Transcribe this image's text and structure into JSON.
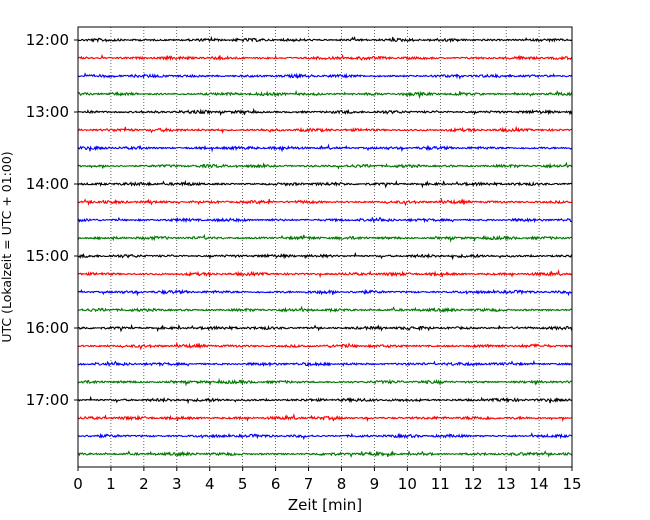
{
  "chart_data": {
    "type": "line",
    "title": "",
    "xlabel": "Zeit  [min]",
    "ylabel": "UTC (Lokalzeit = UTC + 01:00)",
    "xlim": [
      0,
      15
    ],
    "x_ticks": [
      "0",
      "1",
      "2",
      "3",
      "4",
      "5",
      "6",
      "7",
      "8",
      "9",
      "10",
      "11",
      "12",
      "13",
      "14",
      "15"
    ],
    "y_ticks": [
      "12:00",
      "13:00",
      "14:00",
      "15:00",
      "16:00",
      "17:00"
    ],
    "grid": "vertical dotted at each minute",
    "trace_colors": [
      "#000000",
      "#ff0000",
      "#0000ff",
      "#007700"
    ],
    "trace_count": 24,
    "trace_interval_minutes": 15,
    "start_time": "12:00"
  }
}
